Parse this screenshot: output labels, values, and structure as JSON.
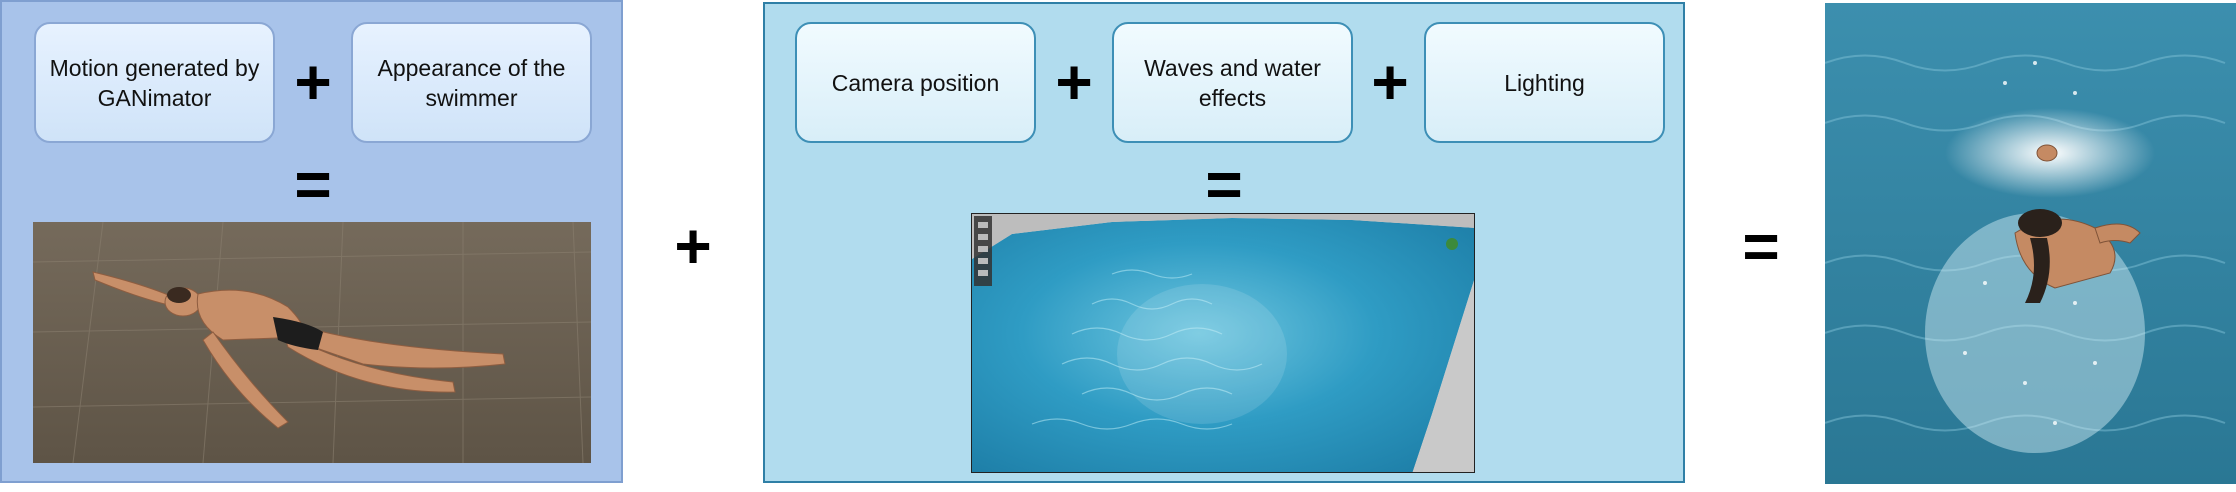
{
  "left_panel": {
    "box1": "Motion generated by GANimator",
    "box2": "Appearance of the swimmer",
    "plus": "+",
    "equals": "="
  },
  "middle_panel": {
    "box1": "Camera position",
    "box2": "Waves and water effects",
    "box3": "Lighting",
    "plus1": "+",
    "plus2": "+",
    "equals": "="
  },
  "operators": {
    "between_panels": "+",
    "before_result": "="
  },
  "colors": {
    "left_panel_bg": "#a8c3ea",
    "middle_panel_bg": "#b1dcee",
    "middle_border": "#2f7fa6"
  }
}
